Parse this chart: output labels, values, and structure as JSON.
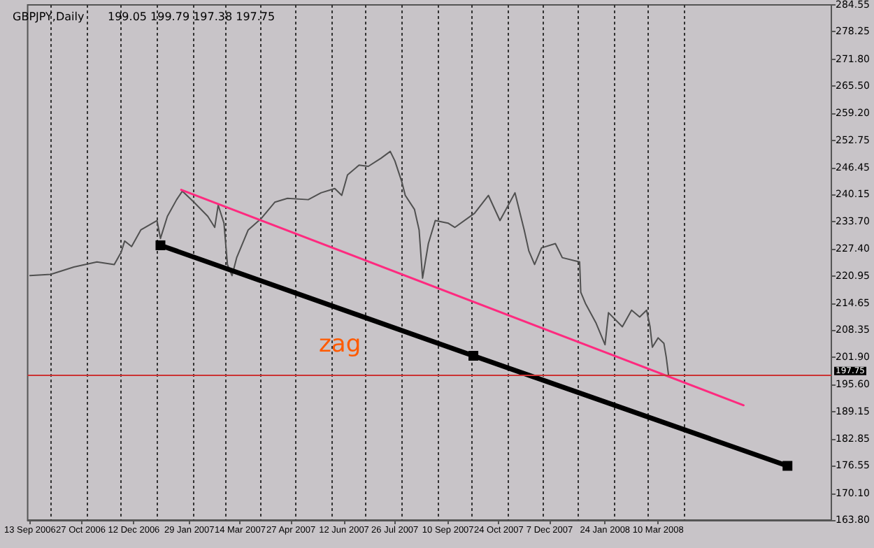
{
  "chart_data": {
    "type": "line",
    "title": "GBPJPY,Daily",
    "subtitle": "199.05 199.79 197.38 197.75",
    "annotations": [
      "zag"
    ],
    "xlim": [
      "2006-09-11",
      "2008-08-07"
    ],
    "xticks": [
      {
        "value": "2006-09-13",
        "label": "13 Sep 2006"
      },
      {
        "value": "2006-10-27",
        "label": "27 Oct 2006"
      },
      {
        "value": "2006-12-12",
        "label": "12 Dec 2006"
      },
      {
        "value": "2007-01-29",
        "label": "29 Jan 2007"
      },
      {
        "value": "2007-03-14",
        "label": "14 Mar 2007"
      },
      {
        "value": "2007-04-27",
        "label": "27 Apr 2007"
      },
      {
        "value": "2007-06-12",
        "label": "12 Jun 2007"
      },
      {
        "value": "2007-07-26",
        "label": "26 Jul 2007"
      },
      {
        "value": "2007-09-10",
        "label": "10 Sep 2007"
      },
      {
        "value": "2007-10-24",
        "label": "24 Oct 2007"
      },
      {
        "value": "2007-12-07",
        "label": "7 Dec 2007"
      },
      {
        "value": "2008-01-24",
        "label": "24 Jan 2008"
      },
      {
        "value": "2008-03-10",
        "label": "10 Mar 2008"
      },
      {
        "value": "2006-10-01",
        "label": null
      },
      {
        "value": "2006-11-01",
        "label": null
      },
      {
        "value": "2006-12-01",
        "label": null
      },
      {
        "value": "2007-01-01",
        "label": null
      },
      {
        "value": "2007-02-01",
        "label": null
      },
      {
        "value": "2007-03-01",
        "label": null
      },
      {
        "value": "2007-04-01",
        "label": null
      },
      {
        "value": "2007-05-01",
        "label": null
      },
      {
        "value": "2007-06-01",
        "label": null
      },
      {
        "value": "2007-07-01",
        "label": null
      },
      {
        "value": "2007-08-01",
        "label": null
      },
      {
        "value": "2007-09-01",
        "label": null
      },
      {
        "value": "2007-10-01",
        "label": null
      },
      {
        "value": "2007-11-01",
        "label": null
      },
      {
        "value": "2007-12-01",
        "label": null
      },
      {
        "value": "2008-01-01",
        "label": null
      },
      {
        "value": "2008-02-01",
        "label": null
      },
      {
        "value": "2008-03-01",
        "label": null
      },
      {
        "value": "2008-04-01",
        "label": null
      }
    ],
    "ylim": [
      163.8,
      284.55
    ],
    "yticks": [
      {
        "value": 163.8,
        "label": "163.80"
      },
      {
        "value": 170.1,
        "label": "170.10"
      },
      176.55,
      182.85,
      189.15,
      {
        "value": 195.6,
        "label": "195.60"
      },
      {
        "value": 201.9,
        "label": "201.90"
      },
      208.35,
      214.65,
      220.95,
      {
        "value": 227.4,
        "label": "227.40"
      },
      {
        "value": 233.7,
        "label": "233.70"
      },
      240.15,
      246.45,
      252.75,
      {
        "value": 259.2,
        "label": "259.20"
      },
      {
        "value": 265.5,
        "label": "265.50"
      },
      {
        "value": 271.8,
        "label": "271.80"
      },
      278.25,
      284.55
    ],
    "grid": "x",
    "ref_lines": [
      {
        "axis": "y",
        "value": 197.75,
        "label": "197.75",
        "color": "#cc3333"
      }
    ],
    "series": [
      {
        "color": "#505050",
        "marker": "none",
        "x": [
          "2006-09-13",
          "2006-10-01",
          "2006-10-21",
          "2006-11-10",
          "2006-11-25",
          "2006-12-01",
          "2006-12-04",
          "2006-12-10",
          "2006-12-18",
          "2007-01-01",
          "2007-01-04",
          "2007-01-10",
          "2007-01-18",
          "2007-01-23",
          "2007-02-02",
          "2007-02-14",
          "2007-02-20",
          "2007-02-23",
          "2007-02-28",
          "2007-03-03",
          "2007-03-07",
          "2007-03-11",
          "2007-03-21",
          "2007-04-01",
          "2007-04-13",
          "2007-04-24",
          "2007-05-12",
          "2007-05-23",
          "2007-06-04",
          "2007-06-10",
          "2007-06-15",
          "2007-06-25",
          "2007-07-03",
          "2007-07-14",
          "2007-07-22",
          "2007-07-26",
          "2007-08-01",
          "2007-08-04",
          "2007-08-12",
          "2007-08-16",
          "2007-08-19",
          "2007-08-24",
          "2007-08-30",
          "2007-09-10",
          "2007-09-16",
          "2007-10-03",
          "2007-10-15",
          "2007-10-25",
          "2007-11-07",
          "2007-11-15",
          "2007-11-19",
          "2007-11-24",
          "2007-11-30",
          "2007-12-12",
          "2007-12-18",
          "2008-01-02",
          "2008-01-03",
          "2008-01-07",
          "2008-01-16",
          "2008-01-24",
          "2008-01-27",
          "2008-02-08",
          "2008-02-16",
          "2008-02-23",
          "2008-02-29",
          "2008-03-03",
          "2008-03-05",
          "2008-03-10",
          "2008-03-15",
          "2008-03-17",
          "2008-03-19"
        ],
        "values": [
          221.1,
          221.4,
          223.1,
          224.3,
          223.7,
          226.6,
          229.2,
          227.9,
          231.8,
          234.0,
          229.8,
          235.0,
          238.9,
          240.9,
          238.3,
          235.0,
          232.4,
          237.6,
          233.4,
          223.7,
          221.1,
          225.3,
          231.8,
          234.4,
          238.3,
          239.2,
          238.9,
          240.5,
          241.5,
          239.9,
          244.7,
          247.0,
          246.7,
          248.6,
          250.2,
          248.0,
          243.1,
          239.9,
          236.6,
          231.8,
          220.5,
          228.6,
          234.0,
          233.4,
          232.4,
          235.7,
          239.9,
          234.0,
          240.5,
          231.8,
          226.9,
          223.7,
          227.6,
          228.6,
          225.3,
          224.3,
          217.2,
          214.6,
          210.1,
          204.9,
          212.4,
          209.1,
          213.0,
          211.4,
          213.0,
          209.1,
          204.3,
          206.5,
          205.2,
          202.0,
          197.75
        ]
      },
      {
        "color": "#000000",
        "marker": "square",
        "x": [
          "2007-01-04",
          "2007-10-02",
          "2008-06-30"
        ],
        "values": [
          228.2,
          202.3,
          176.5
        ]
      },
      {
        "color": "#ff2a7f",
        "marker": "none",
        "x": [
          "2007-01-22",
          "2008-05-23"
        ],
        "values": [
          241.2,
          190.7
        ]
      }
    ]
  }
}
